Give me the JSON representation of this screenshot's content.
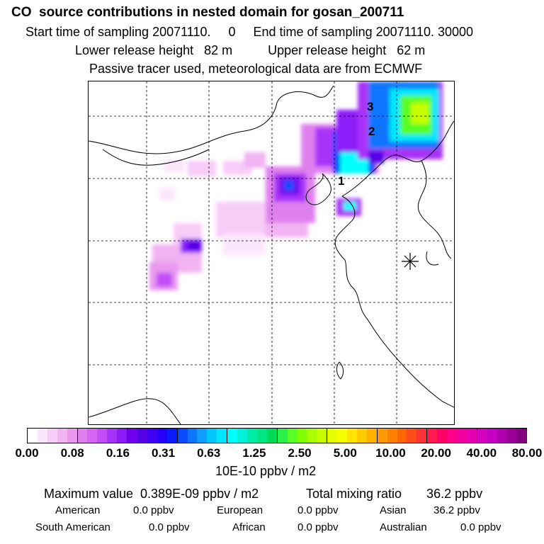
{
  "header": {
    "title": "CO  source contributions in nested domain for gosan_200711",
    "sampling": "Start time of sampling 20071110.     0     End time of sampling 20071110. 30000",
    "release": "Lower release height   82 m          Upper release height   62 m",
    "tracer": "Passive tracer used, meteorological data are from ECMWF"
  },
  "map": {
    "markers": [
      {
        "label": "1"
      },
      {
        "label": "2"
      },
      {
        "label": "3"
      }
    ],
    "receptor_symbol": "star-receptor-icon"
  },
  "colorbar": {
    "tick_labels": [
      "0.00",
      "0.08",
      "0.16",
      "0.31",
      "0.63",
      "1.25",
      "2.50",
      "5.00",
      "10.00",
      "20.00",
      "40.00",
      "80.00"
    ],
    "colors": [
      "#ffffff",
      "#fbe6fb",
      "#f7ccf7",
      "#f2b3f2",
      "#e899ee",
      "#df80ee",
      "#d466f2",
      "#c34df6",
      "#a833f8",
      "#8c1af8",
      "#7000f0",
      "#5500e6",
      "#4100f2",
      "#2400f8",
      "#0a1cff",
      "#0a4cff",
      "#0f74ff",
      "#0f9cff",
      "#00c8ff",
      "#00e6ff",
      "#00ffff",
      "#00f2d8",
      "#00eaa8",
      "#00e680",
      "#00dc58",
      "#2af04a",
      "#58ff24",
      "#80ff00",
      "#a8ff00",
      "#c8ff00",
      "#e6ff00",
      "#f8ff00",
      "#ffe600",
      "#ffcc00",
      "#ffb300",
      "#ff9900",
      "#ff8000",
      "#ff6600",
      "#ff4d1a",
      "#ff3333",
      "#ff1a4d",
      "#ff0066",
      "#ff0088",
      "#f000a0",
      "#e600b4",
      "#d600c0",
      "#c400c4",
      "#b000b0",
      "#990099",
      "#800080"
    ],
    "units": "10E-10 ppbv / m2"
  },
  "summary": {
    "maximum": "Maximum value  0.389E-09 ppbv / m2",
    "total": "Total mixing ratio       36.2 ppbv"
  },
  "regions": [
    {
      "name": "American",
      "value": "0.0 ppbv"
    },
    {
      "name": "European",
      "value": "0.0 ppbv"
    },
    {
      "name": "Asian",
      "value": "36.2 ppbv"
    },
    {
      "name": "South American",
      "value": "0.0 ppbv"
    },
    {
      "name": "African",
      "value": "0.0 ppbv"
    },
    {
      "name": "Australian",
      "value": "0.0 ppbv"
    }
  ]
}
